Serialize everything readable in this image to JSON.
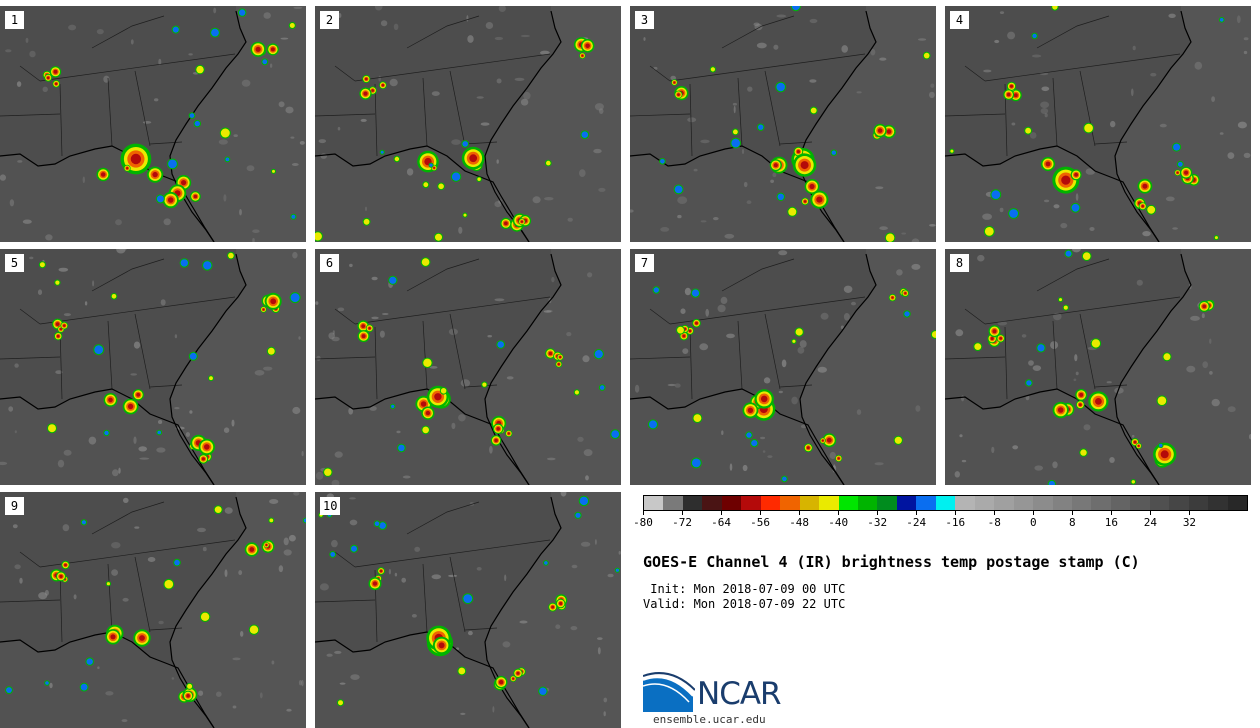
{
  "panels": [
    {
      "label": "1"
    },
    {
      "label": "2"
    },
    {
      "label": "3"
    },
    {
      "label": "4"
    },
    {
      "label": "5"
    },
    {
      "label": "6"
    },
    {
      "label": "7"
    },
    {
      "label": "8"
    },
    {
      "label": "9"
    },
    {
      "label": "10"
    }
  ],
  "colorbar": {
    "colors": [
      "#c8c8c8",
      "#7a7a7a",
      "#2e2e2e",
      "#4a1414",
      "#6e0000",
      "#b40a0a",
      "#ff2a00",
      "#f06400",
      "#d7b400",
      "#eaea00",
      "#00e600",
      "#00b400",
      "#008c1e",
      "#0014a0",
      "#0a6ef0",
      "#00f0f0",
      "#b4b4b4",
      "#aaaaaa",
      "#a0a0a0",
      "#969696",
      "#8c8c8c",
      "#828282",
      "#787878",
      "#6e6e6e",
      "#646464",
      "#5a5a5a",
      "#505050",
      "#464646",
      "#3c3c3c",
      "#323232",
      "#282828"
    ],
    "ticks": [
      "-80",
      "-72",
      "-64",
      "-56",
      "-48",
      "-40",
      "-32",
      "-24",
      "-16",
      "-8",
      "0",
      "8",
      "16",
      "24",
      "32"
    ],
    "min": -80,
    "max": 44,
    "step": 4
  },
  "title": "GOES-E Channel 4 (IR) brightness temp postage stamp (C)",
  "init_text": " Init: Mon 2018-07-09 00 UTC",
  "valid_text": "Valid: Mon 2018-07-09 22 UTC",
  "logo": {
    "name": "NCAR",
    "url": "ensemble.ucar.edu"
  }
}
